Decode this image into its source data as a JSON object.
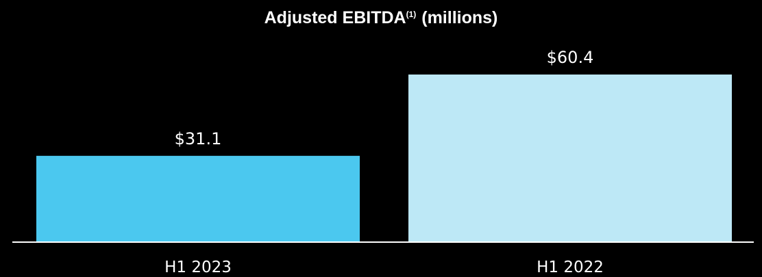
{
  "chart_data": {
    "type": "bar",
    "title": "Adjusted EBITDA",
    "title_superscript": "(1)",
    "title_suffix": "(millions)",
    "categories": [
      "H1 2023",
      "H1 2022"
    ],
    "values": [
      31.1,
      60.4
    ],
    "value_labels": [
      "$31.1",
      "$60.4"
    ],
    "colors": [
      "#4bc8ef",
      "#bde8f6"
    ],
    "ylim": [
      0,
      70
    ],
    "grid": false,
    "legend": false,
    "background": "#000000",
    "axis_color": "#ffffff"
  }
}
